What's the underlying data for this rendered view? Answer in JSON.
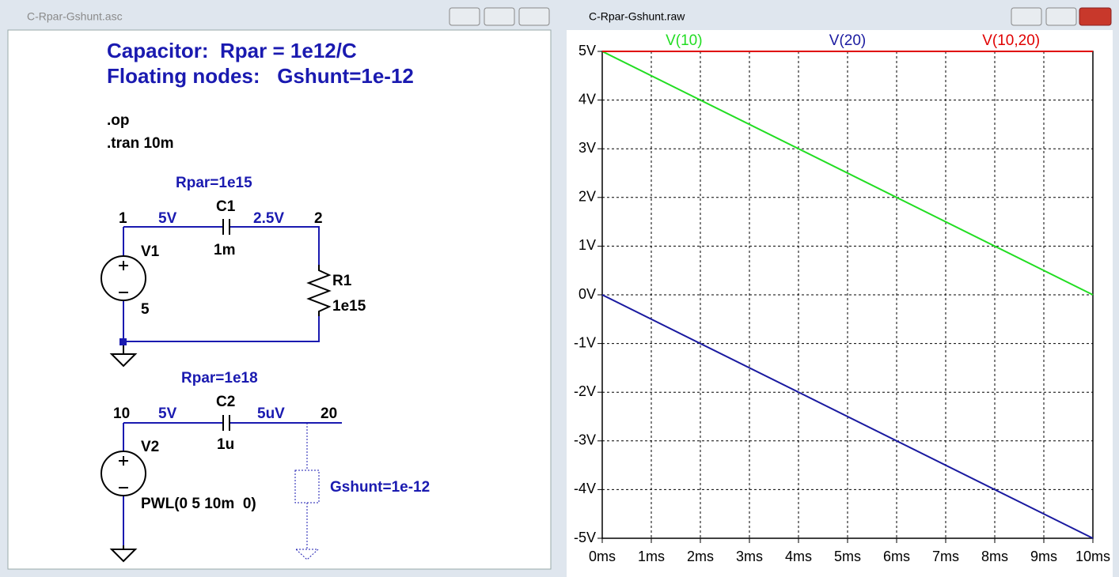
{
  "schematic": {
    "window_title": "C-Rpar-Gshunt.asc",
    "heading": [
      "Capacitor:  Rpar = 1e12/C",
      "Floating nodes:   Gshunt=1e-12"
    ],
    "directives": [
      ".op",
      ".tran 10m"
    ],
    "circuit1": {
      "rpar": "Rpar=1e15",
      "node_a": "1",
      "voltage_a": "5V",
      "cap_name": "C1",
      "voltage_b": "2.5V",
      "node_b": "2",
      "cap_value": "1m",
      "source_name": "V1",
      "source_value": "5",
      "res_name": "R1",
      "res_value": "1e15"
    },
    "circuit2": {
      "rpar": "Rpar=1e18",
      "node_a": "10",
      "voltage_a": "5V",
      "cap_name": "C2",
      "voltage_b": "5uV",
      "node_b": "20",
      "cap_value": "1u",
      "source_name": "V2",
      "source_value": "PWL(0 5 10m  0)",
      "gshunt": "Gshunt=1e-12"
    }
  },
  "waveform": {
    "window_title": "C-Rpar-Gshunt.raw"
  },
  "chart_data": {
    "type": "line",
    "x": [
      0,
      10
    ],
    "series": [
      {
        "name": "V(10)",
        "color": "#22dd22",
        "values": [
          5,
          0
        ]
      },
      {
        "name": "V(20)",
        "color": "#1a1aa0",
        "values": [
          0,
          -5
        ]
      },
      {
        "name": "V(10,20)",
        "color": "#e00000",
        "values": [
          5,
          5
        ]
      }
    ],
    "xlim": [
      0,
      10
    ],
    "xticks": [
      {
        "value": 0,
        "label": "0ms"
      },
      {
        "value": 1,
        "label": "1ms"
      },
      {
        "value": 2,
        "label": "2ms"
      },
      {
        "value": 3,
        "label": "3ms"
      },
      {
        "value": 4,
        "label": "4ms"
      },
      {
        "value": 5,
        "label": "5ms"
      },
      {
        "value": 6,
        "label": "6ms"
      },
      {
        "value": 7,
        "label": "7ms"
      },
      {
        "value": 8,
        "label": "8ms"
      },
      {
        "value": 9,
        "label": "9ms"
      },
      {
        "value": 10,
        "label": "10ms"
      }
    ],
    "ylim": [
      -5,
      5
    ],
    "yticks": [
      {
        "value": 5,
        "label": "5V"
      },
      {
        "value": 4,
        "label": "4V"
      },
      {
        "value": 3,
        "label": "3V"
      },
      {
        "value": 2,
        "label": "2V"
      },
      {
        "value": 1,
        "label": "1V"
      },
      {
        "value": 0,
        "label": "0V"
      },
      {
        "value": -1,
        "label": "-1V"
      },
      {
        "value": -2,
        "label": "-2V"
      },
      {
        "value": -3,
        "label": "-3V"
      },
      {
        "value": -4,
        "label": "-4V"
      },
      {
        "value": -5,
        "label": "-5V"
      }
    ],
    "grid": true
  }
}
